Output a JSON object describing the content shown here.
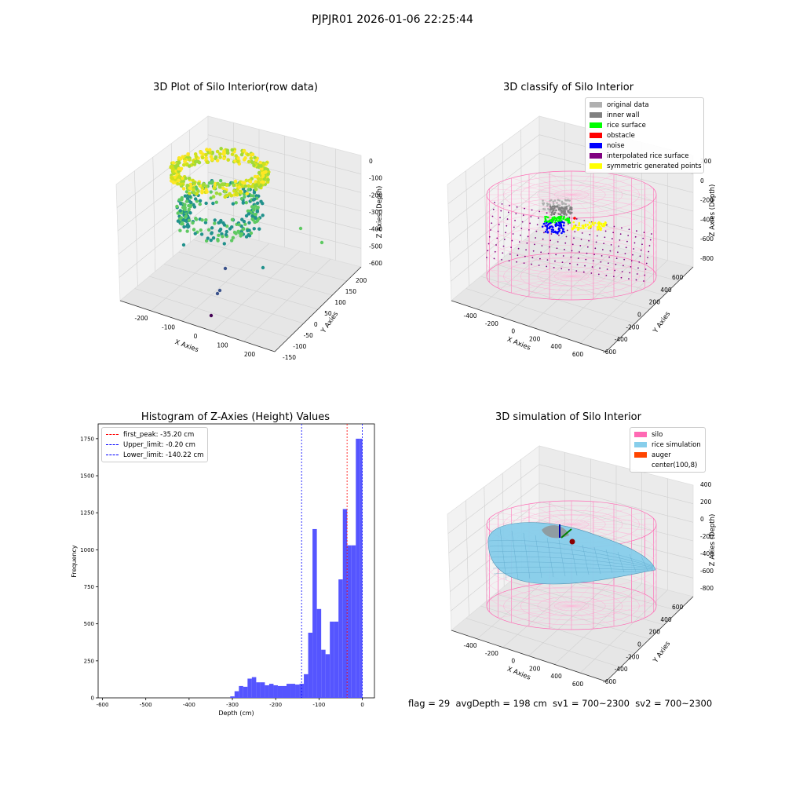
{
  "suptitle": "PJPJR01 2026-01-06 22:25:44",
  "status_line": "flag = 29  avgDepth = 198 cm  sv1 = 700~2300  sv2 = 700~2300",
  "chart_data": [
    {
      "type": "scatter",
      "subtype": "3d-scatter",
      "title": "3D Plot of Silo Interior(row data)",
      "xlabel": "X Axies",
      "ylabel": "Y Axies",
      "zlabel": "Z Axies (Depth)",
      "x_ticks": [
        "-200",
        "-100",
        "0",
        "100",
        "200"
      ],
      "y_ticks": [
        "-150",
        "-100",
        "-50",
        "0",
        "50",
        "100",
        "150",
        "200"
      ],
      "z_ticks": [
        "0",
        "-100",
        "-200",
        "-300",
        "-400",
        "-500",
        "-600"
      ],
      "colormap": "viridis",
      "grid": true
    },
    {
      "type": "scatter",
      "subtype": "3d-scatter",
      "title": "3D classify of Silo Interior",
      "xlabel": "X Axies",
      "ylabel": "Y Axies",
      "zlabel": "Z Axies (Depth)",
      "x_ticks": [
        "-400",
        "-200",
        "0",
        "200",
        "400",
        "600"
      ],
      "y_ticks": [
        "-600",
        "-400",
        "-200",
        "0",
        "200",
        "400",
        "600"
      ],
      "z_ticks": [
        "200",
        "0",
        "-200",
        "-400",
        "-600",
        "-800"
      ],
      "legend_position": "top-right",
      "legend": [
        {
          "label": "original data",
          "color": "#b0b0b0"
        },
        {
          "label": "inner wall",
          "color": "#808080"
        },
        {
          "label": "rice surface",
          "color": "#00ff00"
        },
        {
          "label": "obstacle",
          "color": "#ff0000"
        },
        {
          "label": "noise",
          "color": "#0000ff"
        },
        {
          "label": "interpolated rice surface",
          "color": "#800080"
        },
        {
          "label": "symmetric generated points",
          "color": "#ffff00"
        }
      ],
      "grid": true
    },
    {
      "type": "bar",
      "subtype": "histogram",
      "title": "Histogram of Z-Axies (Height) Values",
      "xlabel": "Depth (cm)",
      "ylabel": "Frequency",
      "x_ticks": [
        -600,
        -500,
        -400,
        -300,
        -200,
        -100,
        0
      ],
      "y_ticks": [
        0,
        250,
        500,
        750,
        1000,
        1250,
        1500,
        1750
      ],
      "xlim": [
        -610,
        28
      ],
      "ylim": [
        0,
        1850
      ],
      "bar_color": "#5555ff",
      "bins": [
        {
          "x0": -305,
          "x1": -295,
          "count": 10
        },
        {
          "x0": -295,
          "x1": -285,
          "count": 45
        },
        {
          "x0": -285,
          "x1": -275,
          "count": 80
        },
        {
          "x0": -275,
          "x1": -265,
          "count": 75
        },
        {
          "x0": -265,
          "x1": -255,
          "count": 130
        },
        {
          "x0": -255,
          "x1": -245,
          "count": 140
        },
        {
          "x0": -245,
          "x1": -235,
          "count": 105
        },
        {
          "x0": -235,
          "x1": -225,
          "count": 105
        },
        {
          "x0": -225,
          "x1": -215,
          "count": 85
        },
        {
          "x0": -215,
          "x1": -205,
          "count": 95
        },
        {
          "x0": -205,
          "x1": -195,
          "count": 85
        },
        {
          "x0": -195,
          "x1": -185,
          "count": 80
        },
        {
          "x0": -185,
          "x1": -175,
          "count": 80
        },
        {
          "x0": -175,
          "x1": -165,
          "count": 95
        },
        {
          "x0": -165,
          "x1": -155,
          "count": 95
        },
        {
          "x0": -155,
          "x1": -145,
          "count": 90
        },
        {
          "x0": -145,
          "x1": -135,
          "count": 95
        },
        {
          "x0": -135,
          "x1": -125,
          "count": 160
        },
        {
          "x0": -125,
          "x1": -115,
          "count": 440
        },
        {
          "x0": -115,
          "x1": -105,
          "count": 1140
        },
        {
          "x0": -105,
          "x1": -95,
          "count": 600
        },
        {
          "x0": -95,
          "x1": -85,
          "count": 325
        },
        {
          "x0": -85,
          "x1": -75,
          "count": 295
        },
        {
          "x0": -75,
          "x1": -65,
          "count": 515
        },
        {
          "x0": -65,
          "x1": -55,
          "count": 515
        },
        {
          "x0": -55,
          "x1": -45,
          "count": 800
        },
        {
          "x0": -45,
          "x1": -35,
          "count": 1275
        },
        {
          "x0": -35,
          "x1": -25,
          "count": 1030
        },
        {
          "x0": -25,
          "x1": -15,
          "count": 1030
        },
        {
          "x0": -15,
          "x1": -5,
          "count": 1750
        },
        {
          "x0": -5,
          "x1": 0,
          "count": 1750
        }
      ],
      "vlines": [
        {
          "label": "first_peak: -35.20 cm",
          "x": -35.2,
          "color": "#ff0000"
        },
        {
          "label": "Upper_limit: -0.20 cm",
          "x": -0.2,
          "color": "#0000ff"
        },
        {
          "label": "Lower_limit: -140.22 cm",
          "x": -140.22,
          "color": "#0000ff"
        }
      ],
      "legend_position": "top-left"
    },
    {
      "type": "scatter",
      "subtype": "3d-surface",
      "title": "3D simulation of Silo Interior",
      "xlabel": "X Axies",
      "ylabel": "Y Axies",
      "zlabel": "Z Axies (Depth)",
      "x_ticks": [
        "-400",
        "-200",
        "0",
        "200",
        "400",
        "600"
      ],
      "y_ticks": [
        "-600",
        "-400",
        "-200",
        "0",
        "200",
        "400",
        "600"
      ],
      "z_ticks": [
        "400",
        "200",
        "0",
        "-200",
        "-400",
        "-600",
        "-800"
      ],
      "legend_position": "top-right",
      "legend": [
        {
          "label": "silo",
          "color": "#ff69b4"
        },
        {
          "label": "rice simulation",
          "color": "#87ceeb"
        },
        {
          "label": "auger",
          "color": "#ff4500"
        },
        {
          "label": "center(100,8)",
          "color": "#ffffff"
        }
      ],
      "grid": true
    }
  ]
}
